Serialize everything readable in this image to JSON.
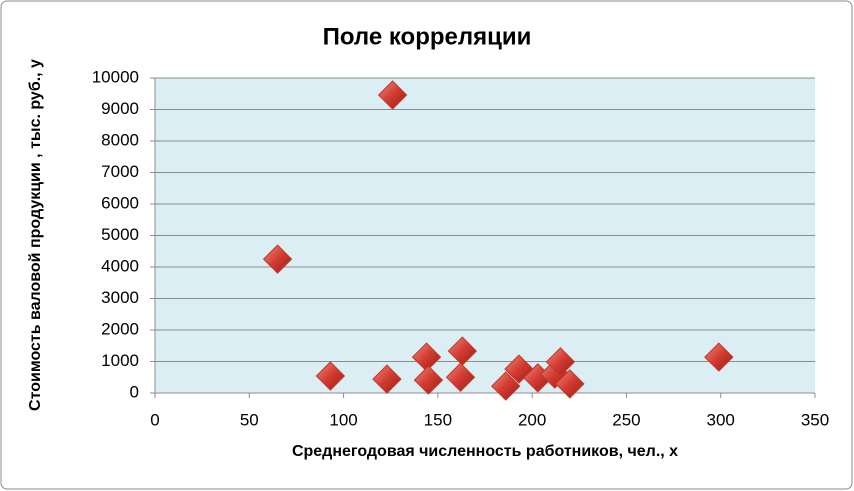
{
  "chart_data": {
    "type": "scatter",
    "title": "Поле корреляции",
    "x_label": "Среднегодовая численность работников, чел., x",
    "y_label": "Стоимость валовой продукции , тыс. руб., y",
    "series": [
      {
        "color": "#c0392b",
        "x": [
          65,
          93,
          126,
          123,
          144,
          145,
          163,
          162,
          186,
          193,
          203,
          212,
          215,
          220,
          299
        ],
        "values": [
          4250,
          540,
          9460,
          440,
          1140,
          410,
          1330,
          500,
          220,
          760,
          480,
          600,
          990,
          290,
          1140
        ]
      }
    ],
    "xlim": [
      0,
      350
    ],
    "xticks": [
      0,
      50,
      100,
      150,
      200,
      250,
      300,
      350
    ],
    "ylim": [
      0,
      10000
    ],
    "yticks": [
      0,
      1000,
      2000,
      3000,
      4000,
      5000,
      6000,
      7000,
      8000,
      9000,
      10000
    ],
    "grid": true,
    "plot_background": "#dbeef3"
  }
}
